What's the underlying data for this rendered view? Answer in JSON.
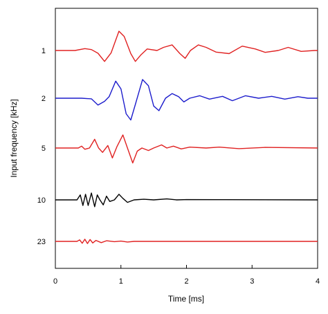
{
  "chart_data": {
    "type": "line",
    "xlabel": "Time [ms]",
    "ylabel": "Input frequency [kHz]",
    "xlim": [
      0,
      4
    ],
    "x_ticks": [
      "0",
      "1",
      "2",
      "3",
      "4"
    ],
    "grid": false,
    "series": [
      {
        "name": "1",
        "color": "#e02020",
        "points": [
          [
            0.0,
            0.0
          ],
          [
            0.3,
            0.0
          ],
          [
            0.45,
            0.06
          ],
          [
            0.55,
            0.03
          ],
          [
            0.65,
            -0.09
          ],
          [
            0.75,
            -0.35
          ],
          [
            0.85,
            -0.08
          ],
          [
            0.97,
            0.62
          ],
          [
            1.05,
            0.45
          ],
          [
            1.15,
            -0.1
          ],
          [
            1.22,
            -0.35
          ],
          [
            1.3,
            -0.15
          ],
          [
            1.4,
            0.05
          ],
          [
            1.55,
            0.0
          ],
          [
            1.65,
            0.1
          ],
          [
            1.78,
            0.18
          ],
          [
            1.9,
            -0.1
          ],
          [
            1.98,
            -0.25
          ],
          [
            2.06,
            0.0
          ],
          [
            2.18,
            0.18
          ],
          [
            2.3,
            0.1
          ],
          [
            2.45,
            -0.05
          ],
          [
            2.65,
            -0.1
          ],
          [
            2.85,
            0.14
          ],
          [
            3.05,
            0.05
          ],
          [
            3.2,
            -0.06
          ],
          [
            3.4,
            0.0
          ],
          [
            3.55,
            0.1
          ],
          [
            3.75,
            -0.03
          ],
          [
            3.95,
            0.0
          ],
          [
            4.0,
            0.0
          ]
        ]
      },
      {
        "name": "2",
        "color": "#1c1ccc",
        "points": [
          [
            0.0,
            0.0
          ],
          [
            0.4,
            0.0
          ],
          [
            0.55,
            -0.02
          ],
          [
            0.65,
            -0.22
          ],
          [
            0.75,
            -0.1
          ],
          [
            0.82,
            0.05
          ],
          [
            0.92,
            0.55
          ],
          [
            1.0,
            0.3
          ],
          [
            1.08,
            -0.5
          ],
          [
            1.15,
            -0.7
          ],
          [
            1.22,
            -0.2
          ],
          [
            1.33,
            0.6
          ],
          [
            1.42,
            0.4
          ],
          [
            1.5,
            -0.25
          ],
          [
            1.58,
            -0.4
          ],
          [
            1.68,
            0.0
          ],
          [
            1.78,
            0.15
          ],
          [
            1.88,
            0.05
          ],
          [
            1.96,
            -0.12
          ],
          [
            2.05,
            0.0
          ],
          [
            2.2,
            0.08
          ],
          [
            2.35,
            -0.03
          ],
          [
            2.55,
            0.06
          ],
          [
            2.7,
            -0.08
          ],
          [
            2.9,
            0.08
          ],
          [
            3.1,
            0.0
          ],
          [
            3.3,
            0.06
          ],
          [
            3.5,
            -0.03
          ],
          [
            3.7,
            0.05
          ],
          [
            3.85,
            0.0
          ],
          [
            4.0,
            0.0
          ]
        ]
      },
      {
        "name": "5",
        "color": "#e02020",
        "points": [
          [
            0.0,
            0.0
          ],
          [
            0.35,
            0.0
          ],
          [
            0.4,
            0.06
          ],
          [
            0.45,
            -0.04
          ],
          [
            0.52,
            0.0
          ],
          [
            0.6,
            0.28
          ],
          [
            0.66,
            0.0
          ],
          [
            0.72,
            -0.14
          ],
          [
            0.8,
            0.08
          ],
          [
            0.87,
            -0.32
          ],
          [
            0.94,
            0.05
          ],
          [
            1.03,
            0.42
          ],
          [
            1.1,
            0.0
          ],
          [
            1.18,
            -0.48
          ],
          [
            1.25,
            -0.1
          ],
          [
            1.32,
            0.0
          ],
          [
            1.42,
            -0.08
          ],
          [
            1.5,
            0.0
          ],
          [
            1.62,
            0.1
          ],
          [
            1.7,
            0.0
          ],
          [
            1.8,
            0.06
          ],
          [
            1.92,
            -0.03
          ],
          [
            2.05,
            0.03
          ],
          [
            2.3,
            0.0
          ],
          [
            2.5,
            0.03
          ],
          [
            2.8,
            -0.02
          ],
          [
            3.2,
            0.02
          ],
          [
            4.0,
            0.0
          ]
        ]
      },
      {
        "name": "10",
        "color": "#000000",
        "points": [
          [
            0.0,
            0.0
          ],
          [
            0.33,
            0.0
          ],
          [
            0.38,
            0.16
          ],
          [
            0.42,
            -0.18
          ],
          [
            0.46,
            0.18
          ],
          [
            0.5,
            -0.18
          ],
          [
            0.55,
            0.22
          ],
          [
            0.6,
            -0.22
          ],
          [
            0.64,
            0.16
          ],
          [
            0.68,
            0.0
          ],
          [
            0.73,
            -0.16
          ],
          [
            0.78,
            0.12
          ],
          [
            0.83,
            -0.05
          ],
          [
            0.9,
            0.0
          ],
          [
            0.97,
            0.18
          ],
          [
            1.03,
            0.05
          ],
          [
            1.1,
            -0.08
          ],
          [
            1.2,
            0.0
          ],
          [
            1.35,
            0.02
          ],
          [
            1.5,
            0.0
          ],
          [
            1.7,
            0.03
          ],
          [
            1.85,
            0.0
          ],
          [
            2.0,
            0.01
          ],
          [
            4.0,
            0.0
          ]
        ]
      },
      {
        "name": "23",
        "color": "#e02020",
        "points": [
          [
            0.0,
            0.0
          ],
          [
            0.33,
            0.0
          ],
          [
            0.37,
            0.05
          ],
          [
            0.41,
            -0.06
          ],
          [
            0.45,
            0.07
          ],
          [
            0.49,
            -0.07
          ],
          [
            0.53,
            0.06
          ],
          [
            0.57,
            -0.05
          ],
          [
            0.62,
            0.03
          ],
          [
            0.7,
            -0.04
          ],
          [
            0.78,
            0.02
          ],
          [
            0.9,
            -0.01
          ],
          [
            1.0,
            0.01
          ],
          [
            1.1,
            -0.02
          ],
          [
            1.2,
            0.0
          ],
          [
            4.0,
            0.0
          ]
        ]
      }
    ]
  }
}
